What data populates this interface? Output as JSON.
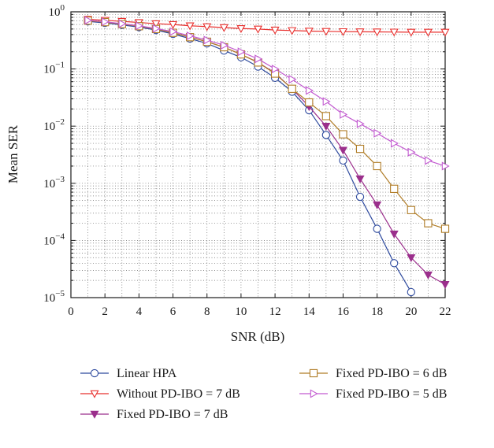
{
  "chart_data": {
    "type": "line",
    "xlabel": "SNR (dB)",
    "ylabel": "Mean SER",
    "xlim": [
      0,
      22
    ],
    "ylim": [
      1e-05,
      1
    ],
    "yscale": "log",
    "grid": true,
    "legend_position": "bottom",
    "x_ticks": [
      "0",
      "2",
      "4",
      "6",
      "8",
      "10",
      "12",
      "14",
      "16",
      "18",
      "20",
      "22"
    ],
    "y_ticks": [
      {
        "base": "10",
        "exp": "0"
      },
      {
        "base": "10",
        "exp": "−1"
      },
      {
        "base": "10",
        "exp": "−2"
      },
      {
        "base": "10",
        "exp": "−3"
      },
      {
        "base": "10",
        "exp": "−4"
      },
      {
        "base": "10",
        "exp": "−5"
      }
    ],
    "series": [
      {
        "name": "Linear HPA",
        "color": "#2e4a9e",
        "marker": "circle",
        "x": [
          1,
          2,
          3,
          4,
          5,
          6,
          7,
          8,
          9,
          10,
          11,
          12,
          13,
          14,
          15,
          16,
          17,
          18,
          19,
          20
        ],
        "y": [
          0.68,
          0.64,
          0.59,
          0.54,
          0.48,
          0.41,
          0.34,
          0.28,
          0.21,
          0.16,
          0.11,
          0.07,
          0.04,
          0.019,
          0.007,
          0.0025,
          0.00058,
          0.00016,
          4e-05,
          1.25e-05
        ]
      },
      {
        "name": "Without PD-IBO = 7 dB",
        "color": "#e8302e",
        "marker": "triangle-down-open",
        "x": [
          1,
          2,
          3,
          4,
          5,
          6,
          7,
          8,
          9,
          10,
          11,
          12,
          13,
          14,
          15,
          16,
          17,
          18,
          19,
          20,
          21,
          22
        ],
        "y": [
          0.74,
          0.71,
          0.68,
          0.65,
          0.62,
          0.6,
          0.57,
          0.55,
          0.53,
          0.51,
          0.5,
          0.48,
          0.47,
          0.46,
          0.455,
          0.45,
          0.447,
          0.445,
          0.443,
          0.44,
          0.44,
          0.44
        ]
      },
      {
        "name": "Fixed PD-IBO = 7 dB",
        "color": "#9b2f8c",
        "marker": "triangle-down-filled",
        "x": [
          1,
          2,
          3,
          4,
          5,
          6,
          7,
          8,
          9,
          10,
          11,
          12,
          13,
          14,
          15,
          16,
          17,
          18,
          19,
          20,
          21,
          22
        ],
        "y": [
          0.7,
          0.66,
          0.61,
          0.56,
          0.5,
          0.43,
          0.36,
          0.3,
          0.24,
          0.18,
          0.13,
          0.085,
          0.045,
          0.022,
          0.01,
          0.0038,
          0.0012,
          0.00042,
          0.00013,
          5e-05,
          2.5e-05,
          1.7e-05
        ]
      },
      {
        "name": "Fixed PD-IBO = 6 dB",
        "color": "#b07d28",
        "marker": "square",
        "x": [
          1,
          2,
          3,
          4,
          5,
          6,
          7,
          8,
          9,
          10,
          11,
          12,
          13,
          14,
          15,
          16,
          17,
          18,
          19,
          20,
          21,
          22
        ],
        "y": [
          0.7,
          0.66,
          0.61,
          0.56,
          0.5,
          0.43,
          0.36,
          0.3,
          0.24,
          0.18,
          0.13,
          0.083,
          0.045,
          0.026,
          0.015,
          0.0072,
          0.004,
          0.002,
          0.0008,
          0.00034,
          0.0002,
          0.00016
        ]
      },
      {
        "name": "Fixed PD-IBO = 5 dB",
        "color": "#c25ad0",
        "marker": "triangle-right",
        "x": [
          1,
          2,
          3,
          4,
          5,
          6,
          7,
          8,
          9,
          10,
          11,
          12,
          13,
          14,
          15,
          16,
          17,
          18,
          19,
          20,
          21,
          22
        ],
        "y": [
          0.71,
          0.67,
          0.62,
          0.57,
          0.51,
          0.45,
          0.38,
          0.32,
          0.26,
          0.2,
          0.15,
          0.1,
          0.066,
          0.042,
          0.027,
          0.016,
          0.011,
          0.0075,
          0.005,
          0.0035,
          0.0025,
          0.002
        ]
      }
    ],
    "legend_layout": [
      [
        0,
        3
      ],
      [
        1,
        4
      ],
      [
        2
      ]
    ]
  }
}
